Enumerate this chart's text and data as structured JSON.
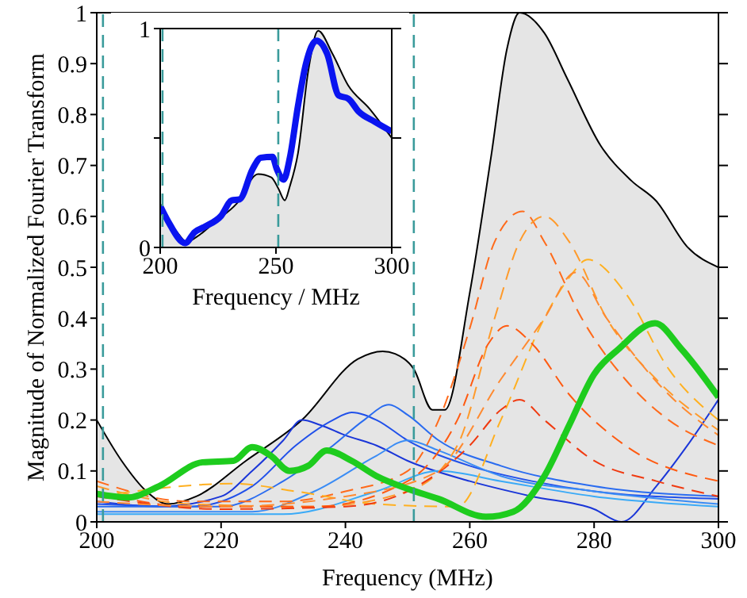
{
  "chart_data": [
    {
      "type": "line",
      "xlabel": "Frequency (MHz)",
      "ylabel": "Magnitude of Normalized Fourier Transform",
      "xlim": [
        200,
        300
      ],
      "ylim": [
        0,
        1
      ],
      "xticks": [
        200,
        220,
        240,
        260,
        280,
        300
      ],
      "yticks": [
        0,
        0.1,
        0.2,
        0.3,
        0.4,
        0.5,
        0.6,
        0.7,
        0.8,
        0.9,
        1
      ],
      "legend": false,
      "marker": "none",
      "ref_lines": [
        {
          "axis": "x",
          "value": 201,
          "color": "#3a9b9b",
          "line_style": "dashed"
        },
        {
          "axis": "x",
          "value": 251,
          "color": "#3a9b9b",
          "line_style": "dashed"
        }
      ],
      "series": [
        {
          "type": "area",
          "color": "#e5e5e5",
          "x": [
            200,
            204,
            208,
            211.5,
            216,
            224,
            233,
            242,
            246,
            248,
            251,
            254,
            256,
            260,
            263.4,
            266,
            268,
            272,
            275.7,
            281,
            286,
            290,
            295,
            300
          ],
          "values": [
            0.2,
            0.12,
            0.06,
            0.035,
            0.05,
            0.12,
            0.2,
            0.32,
            0.335,
            0.33,
            0.3,
            0.22,
            0.22,
            0.45,
            0.715,
            0.93,
            1.0,
            0.96,
            0.87,
            0.74,
            0.67,
            0.63,
            0.54,
            0.5
          ]
        },
        {
          "color": "#1a36d8",
          "x": [
            200,
            210,
            220,
            225,
            230,
            233,
            236,
            240,
            245,
            250,
            260,
            270,
            280,
            284.4,
            290,
            295,
            300
          ],
          "values": [
            0.04,
            0.03,
            0.05,
            0.1,
            0.16,
            0.2,
            0.19,
            0.17,
            0.15,
            0.12,
            0.08,
            0.05,
            0.025,
            0,
            0.07,
            0.15,
            0.24
          ]
        },
        {
          "color": "#2050ea",
          "x": [
            200,
            215,
            225,
            232,
            238,
            241,
            245,
            250,
            260,
            270,
            280,
            300
          ],
          "values": [
            0.035,
            0.03,
            0.07,
            0.15,
            0.2,
            0.215,
            0.2,
            0.16,
            0.11,
            0.08,
            0.06,
            0.045
          ]
        },
        {
          "color": "#2a6cf0",
          "x": [
            200,
            220,
            230,
            238,
            243,
            247,
            250,
            255,
            265,
            280,
            300
          ],
          "values": [
            0.03,
            0.03,
            0.08,
            0.15,
            0.2,
            0.23,
            0.21,
            0.16,
            0.11,
            0.07,
            0.05
          ]
        },
        {
          "color": "#3a8cf5",
          "x": [
            200,
            225,
            235,
            245,
            250,
            255,
            265,
            280,
            300
          ],
          "values": [
            0.02,
            0.02,
            0.06,
            0.13,
            0.16,
            0.14,
            0.09,
            0.06,
            0.035
          ]
        },
        {
          "color": "#3aaaf7",
          "x": [
            200,
            230,
            245,
            255,
            265,
            280,
            300
          ],
          "values": [
            0.015,
            0.015,
            0.06,
            0.1,
            0.08,
            0.05,
            0.03
          ]
        },
        {
          "color": "#ff6a1a",
          "line_style": "dashed",
          "x": [
            200,
            215,
            230,
            240,
            250,
            255,
            260,
            264,
            268.5,
            272,
            278,
            285,
            292,
            300
          ],
          "values": [
            0.08,
            0.04,
            0.04,
            0.06,
            0.1,
            0.2,
            0.38,
            0.55,
            0.61,
            0.55,
            0.4,
            0.28,
            0.2,
            0.15
          ]
        },
        {
          "color": "#ff9a2a",
          "line_style": "dashed",
          "x": [
            200,
            215,
            235,
            250,
            258,
            264,
            268,
            272,
            276,
            282,
            290,
            300
          ],
          "values": [
            0.07,
            0.035,
            0.03,
            0.06,
            0.15,
            0.4,
            0.55,
            0.6,
            0.55,
            0.4,
            0.28,
            0.18
          ]
        },
        {
          "color": "#ffb020",
          "line_style": "dashed",
          "x": [
            200,
            222,
            232,
            245,
            258,
            265,
            272,
            276,
            279,
            285,
            292,
            300
          ],
          "values": [
            0.05,
            0.075,
            0.06,
            0.035,
            0.03,
            0.2,
            0.4,
            0.48,
            0.515,
            0.45,
            0.3,
            0.2
          ]
        },
        {
          "color": "#ff5a10",
          "line_style": "dashed",
          "x": [
            200,
            215,
            235,
            250,
            258,
            263,
            266,
            270,
            276,
            285,
            300
          ],
          "values": [
            0.06,
            0.03,
            0.03,
            0.08,
            0.2,
            0.35,
            0.385,
            0.35,
            0.25,
            0.15,
            0.08
          ]
        },
        {
          "color": "#f03a10",
          "line_style": "dashed",
          "x": [
            200,
            220,
            240,
            250,
            260,
            265,
            268,
            272,
            280,
            290,
            300
          ],
          "values": [
            0.05,
            0.025,
            0.03,
            0.06,
            0.15,
            0.22,
            0.24,
            0.2,
            0.12,
            0.08,
            0.05
          ]
        },
        {
          "color": "#ff8a30",
          "line_style": "dashed",
          "x": [
            200,
            220,
            240,
            255,
            265,
            272,
            277,
            282,
            292,
            300
          ],
          "values": [
            0.04,
            0.03,
            0.05,
            0.1,
            0.28,
            0.4,
            0.49,
            0.4,
            0.25,
            0.17
          ]
        },
        {
          "color": "#1ecc1e",
          "x": [
            200,
            205,
            210,
            217,
            222,
            225,
            228,
            231,
            234,
            237,
            241,
            245,
            250,
            255,
            262.6,
            267,
            272,
            276,
            280,
            284,
            289.8,
            294,
            300
          ],
          "values": [
            0.055,
            0.048,
            0.07,
            0.117,
            0.12,
            0.147,
            0.13,
            0.1,
            0.11,
            0.14,
            0.12,
            0.09,
            0.065,
            0.045,
            0.01,
            0.02,
            0.09,
            0.19,
            0.29,
            0.34,
            0.39,
            0.34,
            0.245
          ]
        }
      ]
    },
    {
      "type": "line",
      "xlabel": "Frequency / MHz",
      "xlim": [
        200,
        300
      ],
      "ylim": [
        0,
        1
      ],
      "xticks": [
        200,
        250,
        300
      ],
      "yticks": [
        0,
        {
          "value": 0.5,
          "label": null
        },
        1
      ],
      "legend": false,
      "marker": "none",
      "ref_lines": [
        {
          "axis": "x",
          "value": 201,
          "color": "#3a9b9b",
          "line_style": "dashed"
        },
        {
          "axis": "x",
          "value": 251,
          "color": "#3a9b9b",
          "line_style": "dashed"
        }
      ],
      "series": [
        {
          "type": "area",
          "color": "#e5e5e5",
          "x": [
            200,
            204,
            208,
            211.4,
            216,
            224,
            233,
            242.3,
            248,
            251,
            253.8,
            256,
            259.5,
            264,
            268.2,
            274.4,
            281.2,
            290.4,
            300
          ],
          "values": [
            0.2,
            0.12,
            0.06,
            0.024,
            0.05,
            0.12,
            0.2,
            0.335,
            0.32,
            0.27,
            0.215,
            0.28,
            0.43,
            0.81,
            0.99,
            0.885,
            0.74,
            0.634,
            0.5
          ]
        },
        {
          "color": "#0a14f0",
          "x": [
            200,
            203.4,
            210.8,
            214.9,
            219.5,
            226.3,
            230.9,
            234.3,
            240,
            243.5,
            248.5,
            250.3,
            253.3,
            256,
            259.5,
            262.9,
            267.5,
            272.1,
            277.1,
            281.2,
            285.8,
            292.7,
            300
          ],
          "values": [
            0.19,
            0.12,
            0.02,
            0.07,
            0.096,
            0.144,
            0.215,
            0.22,
            0.36,
            0.41,
            0.414,
            0.36,
            0.31,
            0.41,
            0.646,
            0.837,
            0.945,
            0.885,
            0.694,
            0.68,
            0.62,
            0.574,
            0.53
          ]
        }
      ]
    }
  ]
}
